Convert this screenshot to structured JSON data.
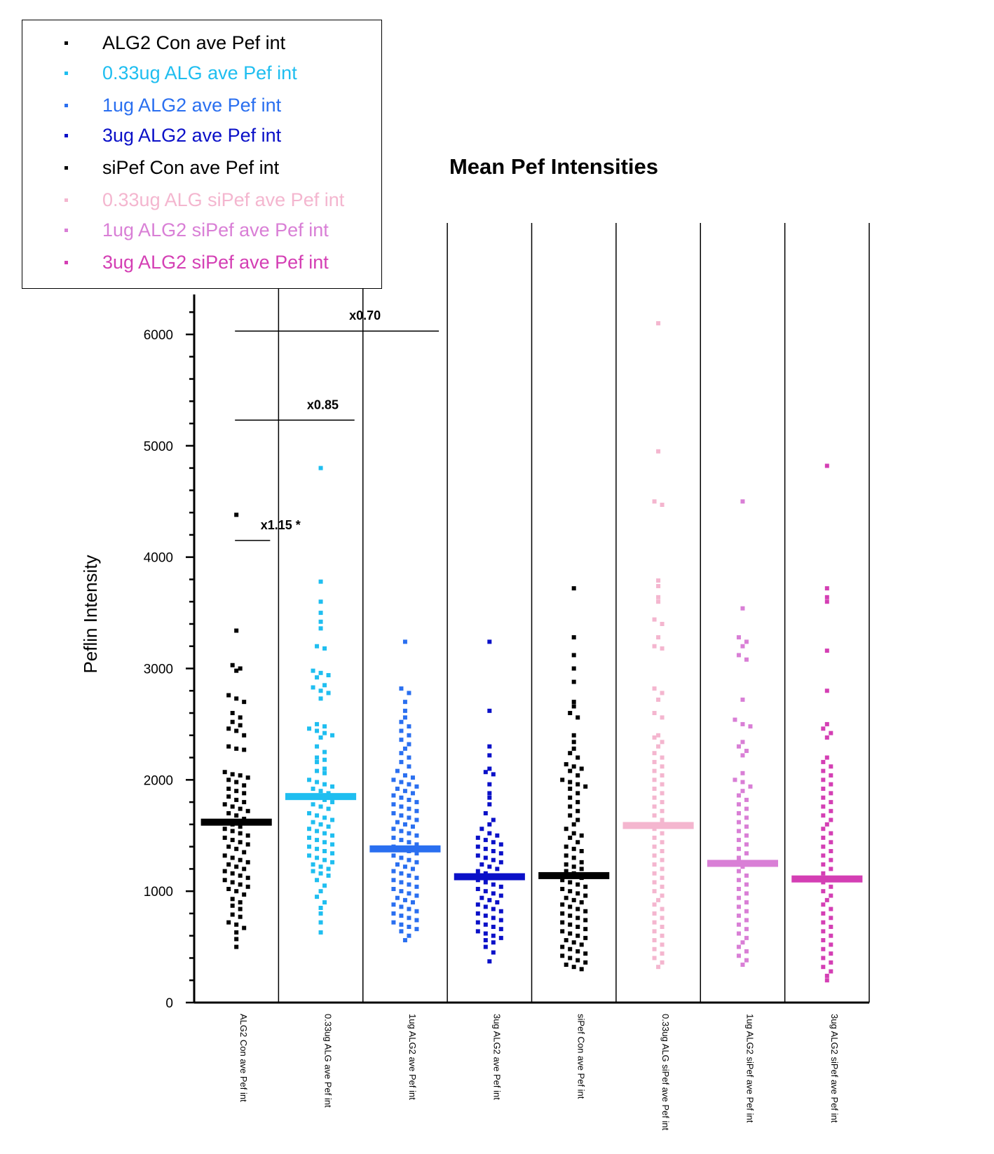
{
  "chart_data": {
    "type": "scatter",
    "title": "Mean Pef Intensities",
    "ylabel": "Peflin Intensity",
    "xlabel": "",
    "ylim": [
      0,
      6200
    ],
    "yticks": [
      0,
      1000,
      2000,
      3000,
      4000,
      5000,
      6000
    ],
    "grid": false,
    "legend_position": "top-left",
    "categories": [
      "ALG2 Con ave Pef int",
      "0.33ug ALG ave Pef int",
      "1ug ALG2 ave Pef int",
      "3ug ALG2 ave Pef int",
      "siPef Con ave Pef int",
      "0.33ug ALG siPef ave Pef int",
      "1ug ALG2 siPef ave Pef int",
      "3ug ALG2 siPef ave Pef int"
    ],
    "series": [
      {
        "name": "ALG2 Con ave Pef int",
        "color": "#000000",
        "mean": 1620,
        "values": [
          4380,
          3340,
          3030,
          3000,
          2980,
          2760,
          2730,
          2700,
          2600,
          2560,
          2520,
          2490,
          2460,
          2440,
          2400,
          2300,
          2280,
          2270,
          2070,
          2050,
          2040,
          2020,
          2000,
          1980,
          1950,
          1920,
          1900,
          1880,
          1850,
          1820,
          1800,
          1780,
          1760,
          1740,
          1720,
          1700,
          1680,
          1650,
          1600,
          1580,
          1560,
          1540,
          1520,
          1500,
          1480,
          1460,
          1440,
          1420,
          1400,
          1380,
          1350,
          1320,
          1300,
          1280,
          1260,
          1240,
          1220,
          1200,
          1180,
          1160,
          1140,
          1120,
          1100,
          1080,
          1060,
          1040,
          1020,
          1000,
          970,
          930,
          900,
          870,
          840,
          790,
          770,
          720,
          700,
          670,
          630,
          570,
          500
        ]
      },
      {
        "name": "0.33ug ALG ave Pef int",
        "color": "#1fbef0",
        "mean": 1850,
        "values": [
          4800,
          3780,
          3600,
          3500,
          3420,
          3360,
          3200,
          3180,
          2980,
          2960,
          2940,
          2920,
          2850,
          2830,
          2800,
          2780,
          2730,
          2500,
          2480,
          2460,
          2440,
          2420,
          2400,
          2380,
          2300,
          2250,
          2200,
          2180,
          2160,
          2100,
          2080,
          2060,
          2000,
          1980,
          1960,
          1940,
          1920,
          1900,
          1880,
          1860,
          1840,
          1820,
          1800,
          1780,
          1760,
          1740,
          1700,
          1680,
          1660,
          1640,
          1620,
          1600,
          1580,
          1560,
          1540,
          1520,
          1500,
          1480,
          1460,
          1440,
          1420,
          1400,
          1380,
          1360,
          1340,
          1320,
          1300,
          1280,
          1260,
          1240,
          1220,
          1200,
          1180,
          1160,
          1140,
          1100,
          1050,
          1000,
          950,
          900,
          850,
          800,
          720,
          630
        ]
      },
      {
        "name": "1ug ALG2 ave Pef int",
        "color": "#2a6ff0",
        "mean": 1380,
        "values": [
          3240,
          2820,
          2780,
          2700,
          2620,
          2560,
          2520,
          2480,
          2440,
          2400,
          2360,
          2320,
          2280,
          2240,
          2200,
          2160,
          2120,
          2080,
          2040,
          2020,
          2000,
          1980,
          1960,
          1940,
          1920,
          1900,
          1880,
          1860,
          1840,
          1820,
          1800,
          1780,
          1760,
          1740,
          1720,
          1700,
          1680,
          1660,
          1640,
          1620,
          1600,
          1580,
          1560,
          1540,
          1520,
          1500,
          1480,
          1460,
          1440,
          1420,
          1400,
          1380,
          1360,
          1340,
          1320,
          1300,
          1280,
          1260,
          1240,
          1220,
          1200,
          1180,
          1160,
          1140,
          1120,
          1100,
          1080,
          1060,
          1040,
          1020,
          1000,
          980,
          960,
          940,
          920,
          900,
          880,
          860,
          840,
          820,
          800,
          780,
          760,
          740,
          720,
          700,
          680,
          660,
          640,
          600,
          560
        ]
      },
      {
        "name": "3ug ALG2 ave Pef int",
        "color": "#0a10c8",
        "mean": 1130,
        "values": [
          3240,
          2620,
          2300,
          2220,
          2100,
          2070,
          2050,
          1960,
          1880,
          1840,
          1780,
          1700,
          1640,
          1600,
          1560,
          1520,
          1500,
          1480,
          1460,
          1440,
          1420,
          1400,
          1380,
          1360,
          1340,
          1320,
          1300,
          1280,
          1260,
          1240,
          1220,
          1200,
          1180,
          1160,
          1140,
          1120,
          1100,
          1080,
          1060,
          1040,
          1020,
          1000,
          980,
          960,
          940,
          920,
          900,
          880,
          860,
          840,
          820,
          800,
          780,
          760,
          740,
          720,
          700,
          680,
          660,
          640,
          620,
          600,
          580,
          560,
          540,
          500,
          450,
          370
        ]
      },
      {
        "name": "siPef Con ave Pef int",
        "color": "#000000",
        "mean": 1140,
        "values": [
          3720,
          3280,
          3120,
          3000,
          2880,
          2700,
          2660,
          2600,
          2560,
          2400,
          2340,
          2280,
          2240,
          2200,
          2140,
          2120,
          2100,
          2080,
          2040,
          2000,
          1980,
          1960,
          1940,
          1920,
          1880,
          1840,
          1800,
          1760,
          1720,
          1680,
          1640,
          1600,
          1560,
          1520,
          1500,
          1480,
          1440,
          1400,
          1380,
          1360,
          1320,
          1300,
          1260,
          1240,
          1220,
          1200,
          1180,
          1160,
          1120,
          1100,
          1080,
          1060,
          1040,
          1020,
          1000,
          980,
          960,
          940,
          920,
          900,
          880,
          860,
          840,
          820,
          800,
          780,
          760,
          740,
          720,
          700,
          680,
          660,
          640,
          620,
          600,
          580,
          560,
          540,
          520,
          500,
          480,
          460,
          440,
          420,
          400,
          380,
          360,
          340,
          320,
          300
        ]
      },
      {
        "name": "0.33ug ALG siPef ave Pef int",
        "color": "#f4b6cf",
        "mean": 1590,
        "values": [
          6100,
          4950,
          4500,
          4470,
          3790,
          3740,
          3640,
          3600,
          3440,
          3400,
          3280,
          3200,
          3180,
          2820,
          2780,
          2720,
          2600,
          2560,
          2400,
          2380,
          2340,
          2300,
          2240,
          2200,
          2160,
          2120,
          2080,
          2040,
          2000,
          1960,
          1920,
          1880,
          1840,
          1800,
          1760,
          1720,
          1680,
          1640,
          1600,
          1560,
          1520,
          1480,
          1440,
          1400,
          1360,
          1320,
          1280,
          1240,
          1200,
          1160,
          1120,
          1080,
          1040,
          1000,
          960,
          920,
          880,
          840,
          800,
          760,
          720,
          680,
          640,
          600,
          560,
          520,
          480,
          440,
          400,
          360,
          320
        ]
      },
      {
        "name": "1ug ALG2 siPef ave Pef int",
        "color": "#d97fd6",
        "mean": 1250,
        "values": [
          4500,
          3540,
          3280,
          3240,
          3200,
          3120,
          3080,
          2720,
          2540,
          2500,
          2480,
          2340,
          2300,
          2260,
          2220,
          2060,
          2000,
          1980,
          1940,
          1900,
          1860,
          1820,
          1780,
          1740,
          1700,
          1660,
          1620,
          1580,
          1540,
          1500,
          1460,
          1420,
          1380,
          1340,
          1300,
          1260,
          1220,
          1180,
          1140,
          1100,
          1060,
          1020,
          980,
          940,
          900,
          860,
          820,
          780,
          740,
          700,
          660,
          620,
          580,
          540,
          500,
          460,
          420,
          380,
          340
        ]
      },
      {
        "name": "3ug ALG2 siPef ave Pef int",
        "color": "#d43fb4",
        "mean": 1110,
        "values": [
          4820,
          3720,
          3640,
          3600,
          3160,
          2800,
          2500,
          2460,
          2420,
          2380,
          2200,
          2160,
          2120,
          2080,
          2040,
          2000,
          1960,
          1920,
          1880,
          1840,
          1800,
          1760,
          1720,
          1680,
          1640,
          1600,
          1560,
          1520,
          1480,
          1440,
          1400,
          1360,
          1320,
          1280,
          1240,
          1200,
          1160,
          1120,
          1080,
          1040,
          1000,
          960,
          920,
          880,
          840,
          800,
          760,
          720,
          680,
          640,
          600,
          560,
          520,
          480,
          440,
          400,
          360,
          320,
          280,
          240,
          200
        ]
      }
    ],
    "annotations": [
      {
        "label": "x1.15  *",
        "y": 4150,
        "from": 0,
        "to": 1
      },
      {
        "label": "x0.85",
        "y": 5230,
        "from": 0,
        "to": 2
      },
      {
        "label": "x0.70",
        "y": 6030,
        "from": 0,
        "to": 3
      }
    ]
  }
}
